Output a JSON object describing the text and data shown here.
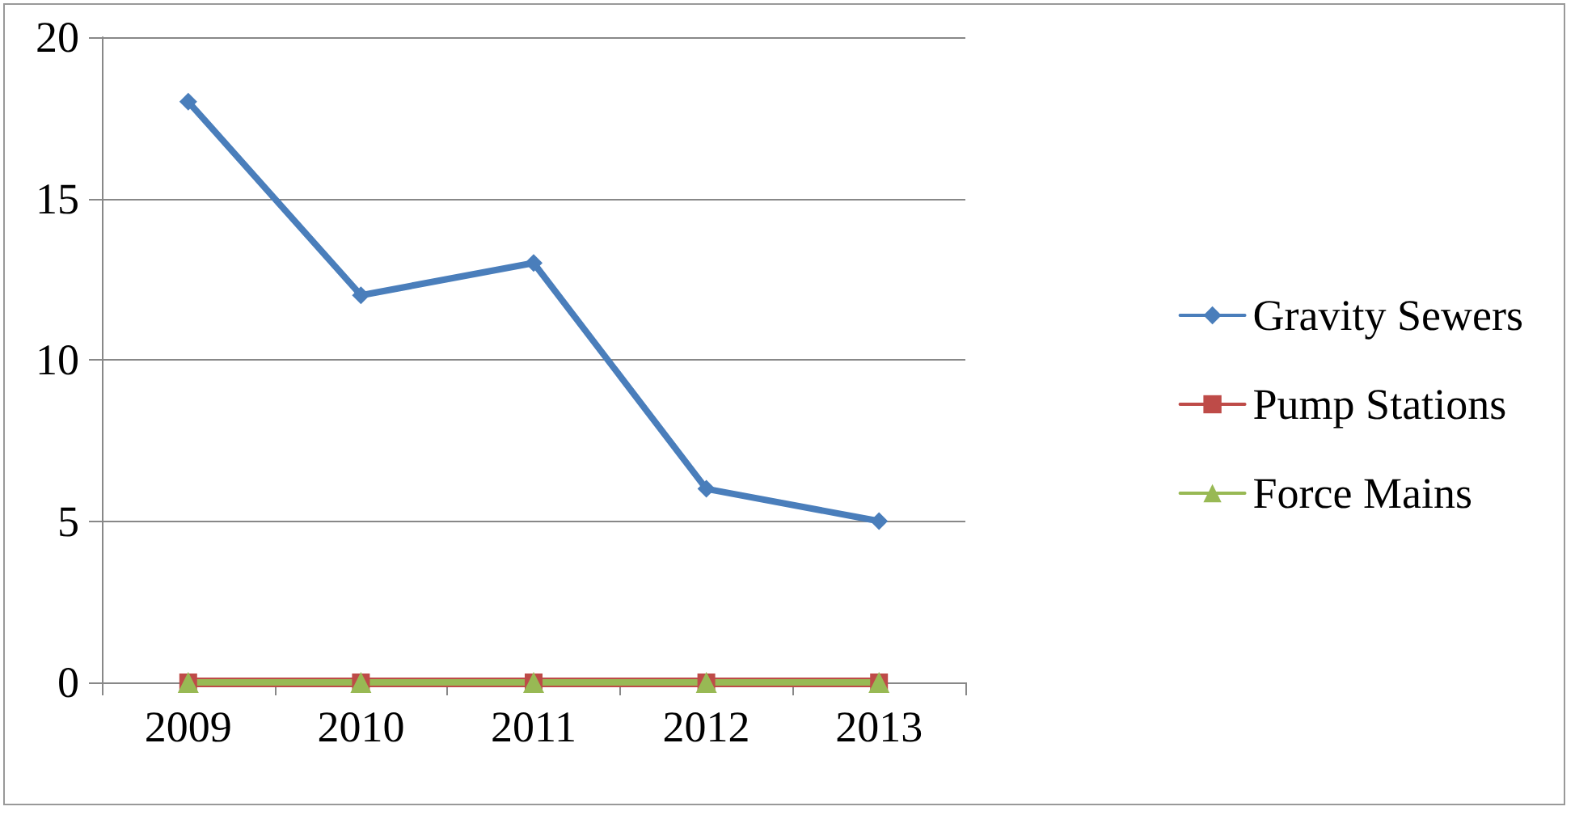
{
  "chart_data": {
    "type": "line",
    "categories": [
      "2009",
      "2010",
      "2011",
      "2012",
      "2013"
    ],
    "series": [
      {
        "name": "Gravity Sewers",
        "color": "#4a7ebb",
        "marker": "diamond",
        "values": [
          18,
          12,
          13,
          6,
          5
        ]
      },
      {
        "name": "Pump Stations",
        "color": "#be4b48",
        "marker": "square",
        "values": [
          0,
          0,
          0,
          0,
          0
        ]
      },
      {
        "name": "Force Mains",
        "color": "#98b954",
        "marker": "triangle",
        "values": [
          0,
          0,
          0,
          0,
          0
        ]
      }
    ],
    "ylim": [
      0,
      20
    ],
    "yticks": [
      0,
      5,
      10,
      15,
      20
    ],
    "grid": "y",
    "legend": "right",
    "line_style": "solid"
  }
}
